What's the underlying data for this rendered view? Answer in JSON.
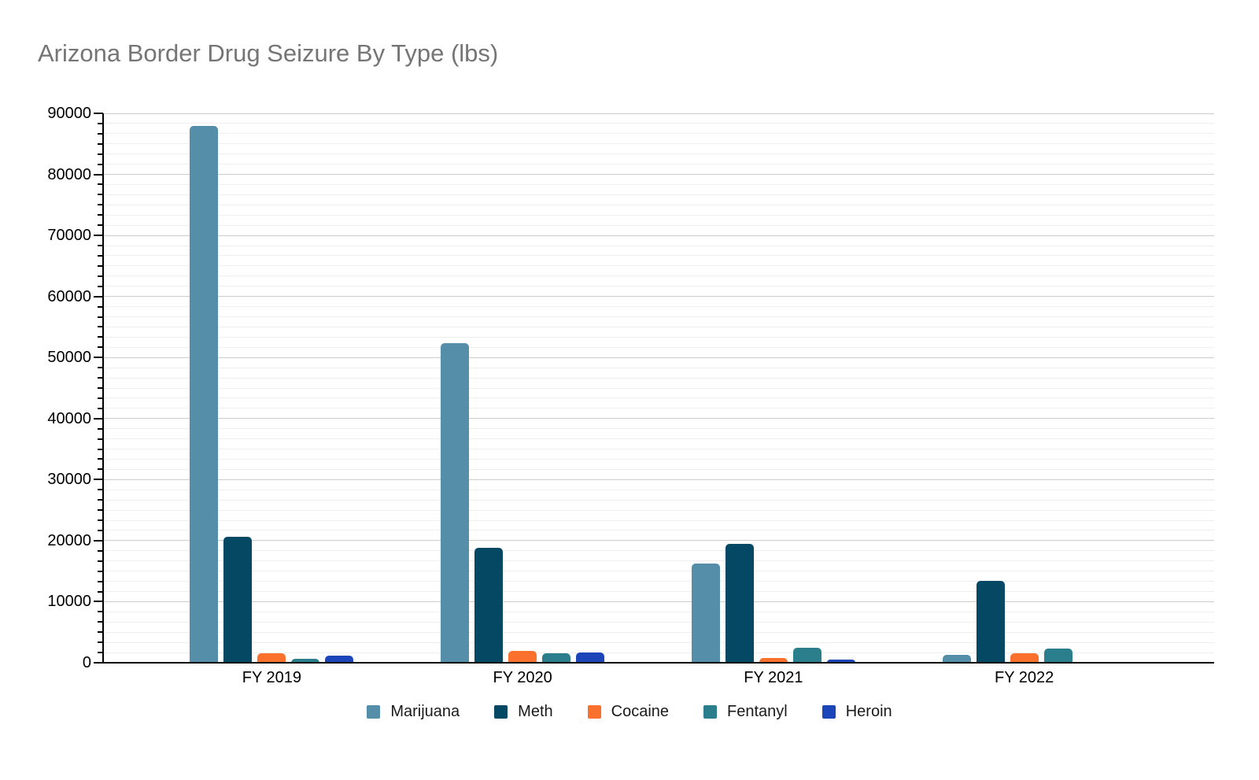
{
  "title": "Arizona Border Drug Seizure By Type (lbs)",
  "chart_data": {
    "type": "bar",
    "title": "Arizona Border Drug Seizure By Type (lbs)",
    "categories": [
      "FY 2019",
      "FY 2020",
      "FY 2021",
      "FY 2022"
    ],
    "series": [
      {
        "name": "Marijuana",
        "color": "#548EA9",
        "values": [
          88000,
          52300,
          16300,
          1300
        ]
      },
      {
        "name": "Meth",
        "color": "#044863",
        "values": [
          20700,
          18800,
          19500,
          13400
        ]
      },
      {
        "name": "Cocaine",
        "color": "#FA712D",
        "values": [
          1500,
          2000,
          800,
          1500
        ]
      },
      {
        "name": "Fentanyl",
        "color": "#2B7F8D",
        "values": [
          700,
          1600,
          2500,
          2300
        ]
      },
      {
        "name": "Heroin",
        "color": "#1C45BA",
        "values": [
          1200,
          1700,
          500,
          150
        ]
      }
    ],
    "xlabel": "",
    "ylabel": "",
    "ylim": [
      0,
      90000
    ],
    "y_major_step": 10000,
    "y_minor_per_major": 5,
    "y_tick_labels": [
      "0",
      "10000",
      "20000",
      "30000",
      "40000",
      "50000",
      "60000",
      "70000",
      "80000",
      "90000"
    ],
    "grid": true,
    "legend_position": "bottom"
  },
  "colors": {
    "background": "#ffffff",
    "title_text": "#757575",
    "axis": "#000000",
    "major_grid": "#cccccc",
    "minor_grid": "#eeeeee",
    "tick_label": "#000000",
    "legend_text": "#1a1a1a"
  }
}
